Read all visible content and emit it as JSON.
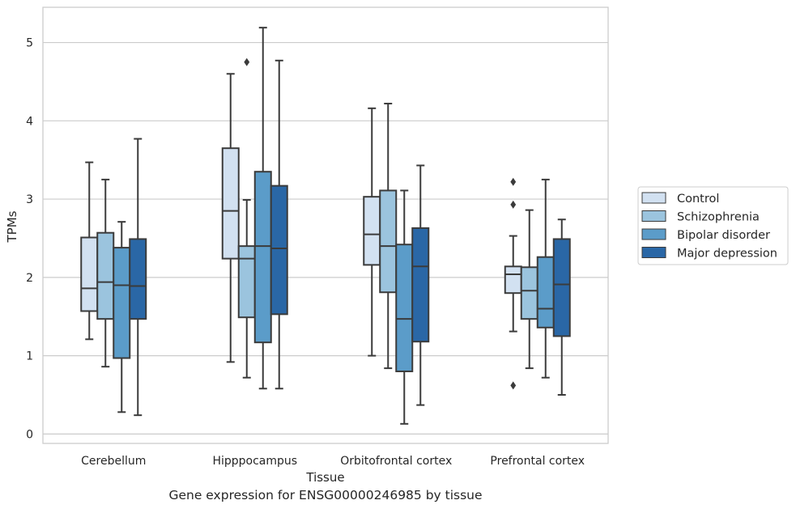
{
  "chart_data": {
    "type": "box",
    "xlabel": "Tissue",
    "ylabel": "TPMs",
    "caption": "Gene expression for ENSG00000246985 by tissue",
    "ylim": [
      -0.12,
      5.45
    ],
    "yticks": [
      0,
      1,
      2,
      3,
      4,
      5
    ],
    "grid": true,
    "legend_position": "right",
    "categories": [
      "Cerebellum",
      "Hipppocampus",
      "Orbitofrontal cortex",
      "Prefrontal cortex"
    ],
    "series": [
      {
        "name": "Control",
        "color": "#d2e1f1",
        "boxes": [
          {
            "min": 1.21,
            "q1": 1.57,
            "median": 1.86,
            "q3": 2.51,
            "max": 3.47,
            "outliers": []
          },
          {
            "min": 0.92,
            "q1": 2.24,
            "median": 2.85,
            "q3": 3.65,
            "max": 4.6,
            "outliers": []
          },
          {
            "min": 1.0,
            "q1": 2.16,
            "median": 2.55,
            "q3": 3.03,
            "max": 4.16,
            "outliers": []
          },
          {
            "min": 1.31,
            "q1": 1.8,
            "median": 2.04,
            "q3": 2.14,
            "max": 2.53,
            "outliers": [
              3.22,
              2.93,
              0.62
            ]
          }
        ]
      },
      {
        "name": "Schizophrenia",
        "color": "#9bc4de",
        "boxes": [
          {
            "min": 0.86,
            "q1": 1.47,
            "median": 1.94,
            "q3": 2.57,
            "max": 3.25,
            "outliers": []
          },
          {
            "min": 0.72,
            "q1": 1.49,
            "median": 2.24,
            "q3": 2.4,
            "max": 2.99,
            "outliers": [
              4.75
            ]
          },
          {
            "min": 0.84,
            "q1": 1.81,
            "median": 2.4,
            "q3": 3.11,
            "max": 4.22,
            "outliers": []
          },
          {
            "min": 0.84,
            "q1": 1.47,
            "median": 1.83,
            "q3": 2.13,
            "max": 2.86,
            "outliers": []
          }
        ]
      },
      {
        "name": "Bipolar disorder",
        "color": "#5b9cc9",
        "boxes": [
          {
            "min": 0.28,
            "q1": 0.97,
            "median": 1.9,
            "q3": 2.38,
            "max": 2.71,
            "outliers": []
          },
          {
            "min": 0.58,
            "q1": 1.17,
            "median": 2.4,
            "q3": 3.35,
            "max": 5.19,
            "outliers": []
          },
          {
            "min": 0.13,
            "q1": 0.8,
            "median": 1.47,
            "q3": 2.42,
            "max": 3.11,
            "outliers": []
          },
          {
            "min": 0.72,
            "q1": 1.36,
            "median": 1.6,
            "q3": 2.26,
            "max": 3.25,
            "outliers": []
          }
        ]
      },
      {
        "name": "Major depression",
        "color": "#2a67a6",
        "boxes": [
          {
            "min": 0.24,
            "q1": 1.47,
            "median": 1.89,
            "q3": 2.49,
            "max": 3.77,
            "outliers": []
          },
          {
            "min": 0.58,
            "q1": 1.53,
            "median": 2.37,
            "q3": 3.17,
            "max": 4.77,
            "outliers": []
          },
          {
            "min": 0.37,
            "q1": 1.18,
            "median": 2.14,
            "q3": 2.63,
            "max": 3.43,
            "outliers": []
          },
          {
            "min": 0.5,
            "q1": 1.25,
            "median": 1.91,
            "q3": 2.49,
            "max": 2.74,
            "outliers": []
          }
        ]
      }
    ]
  }
}
